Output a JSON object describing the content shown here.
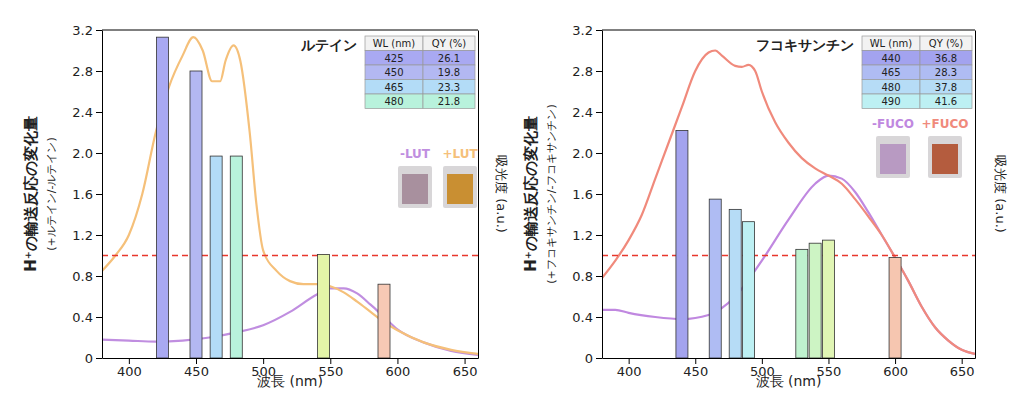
{
  "chart_data": [
    {
      "type": "bar",
      "title": "ルテイン",
      "x_label": "波長 (nm)",
      "y_label": "H⁺の輸送反応の変化量",
      "y_sublabel": "(+ルテイン/-ルテイン)",
      "y2_label": "吸光度 (a.u.)",
      "xlim": [
        380,
        660
      ],
      "xticks": [
        400,
        450,
        500,
        550,
        600,
        650
      ],
      "ylim": [
        0,
        3.2
      ],
      "yticks": [
        0,
        0.4,
        0.8,
        1.2,
        1.6,
        {
          "value": 2,
          "label": "2.0"
        },
        2.4,
        2.8,
        3.2
      ],
      "y2lim": [
        0,
        3.2
      ],
      "reference_line": {
        "value": 1,
        "color": "#e8372c",
        "line_style": "dashed"
      },
      "series": [
        {
          "type": "bar",
          "x": [
            425,
            450,
            465,
            480,
            545,
            590
          ],
          "values": [
            3.13,
            2.8,
            1.97,
            1.97,
            1.01,
            0.72
          ],
          "colors": [
            "#a9a9f2",
            "#b3b8f2",
            "#b3dcf7",
            "#b8f2dc",
            "#e4f5a8",
            "#f7c9b5"
          ]
        },
        {
          "type": "line",
          "name": "-LUT",
          "axis": "y2",
          "color": "#c08ee0",
          "x": [
            380,
            400,
            420,
            440,
            460,
            480,
            500,
            520,
            540,
            550,
            560,
            570,
            580,
            590,
            600,
            620,
            640,
            660
          ],
          "values": [
            0.18,
            0.17,
            0.16,
            0.17,
            0.2,
            0.25,
            0.32,
            0.45,
            0.62,
            0.68,
            0.68,
            0.63,
            0.52,
            0.4,
            0.28,
            0.15,
            0.07,
            0.03
          ]
        },
        {
          "type": "line",
          "name": "+LUT",
          "axis": "y2",
          "color": "#f5c07a",
          "x": [
            380,
            390,
            400,
            410,
            420,
            430,
            440,
            448,
            455,
            462,
            468,
            472,
            478,
            483,
            490,
            495,
            500,
            510,
            520,
            530,
            540,
            550,
            560,
            570,
            580,
            590,
            600,
            620,
            640,
            660
          ],
          "values": [
            0.85,
            1.0,
            1.2,
            1.6,
            2.2,
            2.65,
            2.95,
            3.13,
            3.0,
            2.7,
            2.7,
            2.9,
            3.05,
            2.9,
            2.2,
            1.5,
            1.05,
            0.85,
            0.75,
            0.72,
            0.72,
            0.7,
            0.64,
            0.55,
            0.45,
            0.35,
            0.27,
            0.15,
            0.08,
            0.04
          ]
        }
      ],
      "table": {
        "columns": [
          "WL (nm)",
          "QY (%)"
        ],
        "rows": [
          [
            425,
            26.1
          ],
          [
            450,
            19.8
          ],
          [
            465,
            23.3
          ],
          [
            480,
            21.8
          ]
        ]
      }
    },
    {
      "type": "bar",
      "title": "フコキサンチン",
      "x_label": "波長 (nm)",
      "y_label": "H⁺の輸送反応の変化量",
      "y_sublabel": "(+フコキサンチン/-フコキサンチン)",
      "y2_label": "吸光度 (a.u.)",
      "xlim": [
        380,
        660
      ],
      "xticks": [
        400,
        450,
        500,
        550,
        600,
        650
      ],
      "ylim": [
        0,
        3.2
      ],
      "yticks": [
        0,
        0.4,
        0.8,
        1.2,
        1.6,
        {
          "value": 2,
          "label": "2.0"
        },
        2.4,
        2.8,
        3.2
      ],
      "y2lim": [
        0,
        3.2
      ],
      "reference_line": {
        "value": 1,
        "color": "#e8372c",
        "line_style": "dashed"
      },
      "series": [
        {
          "type": "bar",
          "x": [
            440,
            465,
            480,
            490,
            530,
            540,
            550,
            600
          ],
          "values": [
            2.22,
            1.55,
            1.45,
            1.33,
            1.06,
            1.12,
            1.15,
            0.98
          ],
          "colors": [
            "#a3a3ef",
            "#afbcf3",
            "#b6dcf6",
            "#bdf0f3",
            "#bff2cf",
            "#cdf4c4",
            "#e0f5b4",
            "#f6c6b0"
          ]
        },
        {
          "type": "line",
          "name": "-FUCO",
          "axis": "y2",
          "color": "#c088e0",
          "x": [
            380,
            390,
            400,
            420,
            440,
            460,
            480,
            500,
            520,
            540,
            550,
            560,
            570,
            580,
            590,
            600,
            610,
            620,
            630,
            640,
            650,
            660
          ],
          "values": [
            0.47,
            0.47,
            0.44,
            0.4,
            0.38,
            0.42,
            0.6,
            0.95,
            1.35,
            1.7,
            1.78,
            1.75,
            1.62,
            1.42,
            1.2,
            0.98,
            0.75,
            0.5,
            0.3,
            0.17,
            0.08,
            0.04
          ]
        },
        {
          "type": "line",
          "name": "+FUCO",
          "axis": "y2",
          "color": "#f08a7c",
          "x": [
            380,
            390,
            400,
            410,
            420,
            430,
            440,
            450,
            460,
            465,
            470,
            480,
            485,
            490,
            495,
            500,
            510,
            520,
            530,
            540,
            550,
            560,
            570,
            580,
            590,
            600,
            610,
            620,
            630,
            640,
            650,
            660
          ],
          "values": [
            0.78,
            0.95,
            1.15,
            1.4,
            1.75,
            2.1,
            2.45,
            2.8,
            2.98,
            3.0,
            2.95,
            2.85,
            2.84,
            2.86,
            2.8,
            2.6,
            2.3,
            2.1,
            1.95,
            1.85,
            1.78,
            1.7,
            1.55,
            1.38,
            1.2,
            0.98,
            0.75,
            0.5,
            0.3,
            0.17,
            0.08,
            0.04
          ]
        }
      ],
      "table": {
        "columns": [
          "WL (nm)",
          "QY (%)"
        ],
        "rows": [
          [
            440,
            36.8
          ],
          [
            465,
            28.3
          ],
          [
            480,
            37.8
          ],
          [
            490,
            41.6
          ]
        ]
      }
    }
  ]
}
